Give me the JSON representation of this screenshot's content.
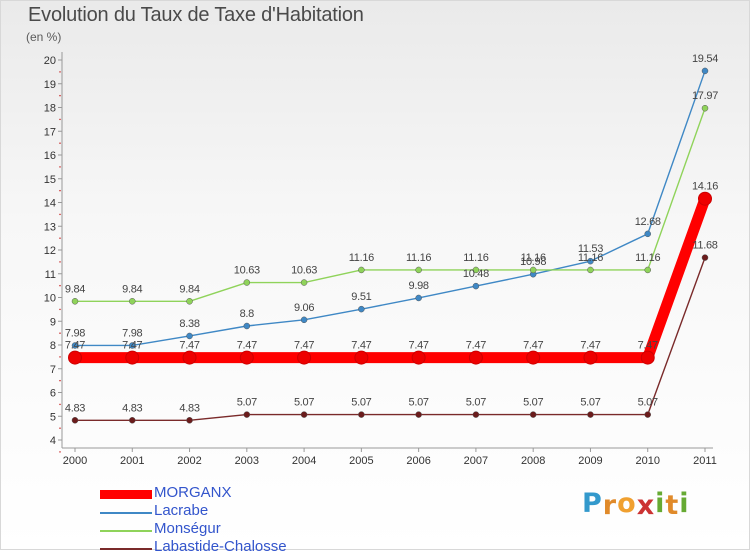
{
  "title": "Evolution du Taux de Taxe d'Habitation",
  "unit": "(en %)",
  "logo": {
    "letters": [
      "P",
      "r",
      "o",
      "x",
      "i",
      "t",
      "i"
    ],
    "colors": [
      "#3399cc",
      "#e08a2a",
      "#f0a030",
      "#cc3333",
      "#66aa33",
      "#e08a2a",
      "#66aa33"
    ]
  },
  "chart_data": {
    "type": "line",
    "title": "Evolution du Taux de Taxe d'Habitation",
    "ylabel": "(en %)",
    "ylim": [
      4,
      20
    ],
    "yticks": [
      4,
      5,
      6,
      7,
      8,
      9,
      10,
      11,
      12,
      13,
      14,
      15,
      16,
      17,
      18,
      19,
      20
    ],
    "x": [
      "2000",
      "2001",
      "2002",
      "2003",
      "2004",
      "2005",
      "2006",
      "2007",
      "2008",
      "2009",
      "2010",
      "2011"
    ],
    "grid": false,
    "legend": "bottom-left",
    "series": [
      {
        "name": "Lacrabe",
        "color": "#3f88c5",
        "point_color": "#3f88c5",
        "values": [
          7.98,
          7.98,
          8.38,
          8.8,
          9.06,
          9.51,
          9.98,
          10.48,
          10.98,
          11.53,
          12.68,
          19.54
        ]
      },
      {
        "name": "Monségur",
        "color": "#8fd35a",
        "point_color": "#8fd35a",
        "values": [
          9.84,
          9.84,
          9.84,
          10.63,
          10.63,
          11.16,
          11.16,
          11.16,
          11.16,
          11.16,
          11.16,
          17.97
        ]
      },
      {
        "name": "Labastide-Chalosse",
        "color": "#7a2a2a",
        "point_color": "#6b1c1c",
        "values": [
          4.83,
          4.83,
          4.83,
          5.07,
          5.07,
          5.07,
          5.07,
          5.07,
          5.07,
          5.07,
          5.07,
          11.68
        ]
      },
      {
        "name": "MORGANX",
        "color": "#ff0000",
        "point_color": "#ee0000",
        "thick": true,
        "values": [
          7.47,
          7.47,
          7.47,
          7.47,
          7.47,
          7.47,
          7.47,
          7.47,
          7.47,
          7.47,
          7.47,
          14.16
        ]
      }
    ],
    "point_labels": {
      "MORGANX": [
        "7.47",
        "7.47",
        "7.47",
        "7.47",
        "7.47",
        "7.47",
        "7.47",
        "7.47",
        "7.47",
        "7.47",
        "7.47",
        "14.16"
      ],
      "Lacrabe": [
        "7.98",
        "7.98",
        "8.38",
        "8.8",
        "9.06",
        "9.51",
        "9.98",
        "10.48",
        "10.98",
        "11.53",
        "12.68",
        "19.54"
      ],
      "Monségur": [
        "9.84",
        "9.84",
        "9.84",
        "10.63",
        "10.63",
        "11.16",
        "11.16",
        "11.16",
        "11.16",
        "11.16",
        "11.16",
        "17.97"
      ],
      "Labastide-Chalosse": [
        "4.83",
        "4.83",
        "4.83",
        "5.07",
        "5.07",
        "5.07",
        "5.07",
        "5.07",
        "5.07",
        "5.07",
        "5.07",
        "11.68"
      ]
    },
    "legend_order": [
      "MORGANX",
      "Lacrabe",
      "Monségur",
      "Labastide-Chalosse"
    ]
  }
}
